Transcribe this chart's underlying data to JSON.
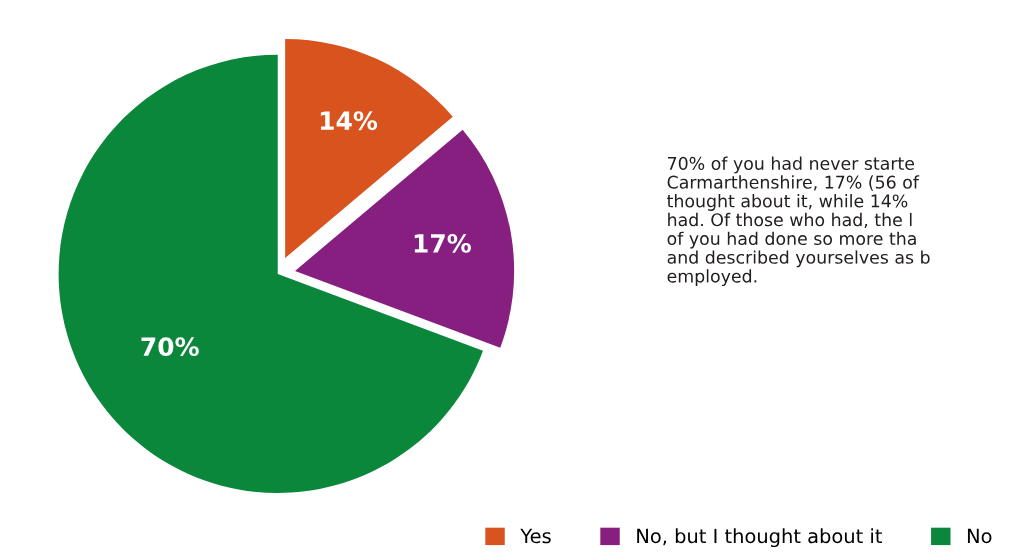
{
  "chart_data": {
    "type": "pie",
    "categories": [
      "Yes",
      "No, but I thought about it",
      "No"
    ],
    "values": [
      14,
      17,
      70
    ],
    "colors": [
      "#d9531e",
      "#861f80",
      "#0b873c"
    ],
    "value_labels": [
      "14%",
      "17%",
      "70%"
    ],
    "legend": "bottom",
    "annotations": [
      "70% of you had never starte\nCarmarthenshire, 17% (56 of\nthought about it, while 14%\nhad. Of those who had, the l\nof you had done so more tha\nand described yourselves as b\nemployed."
    ]
  }
}
